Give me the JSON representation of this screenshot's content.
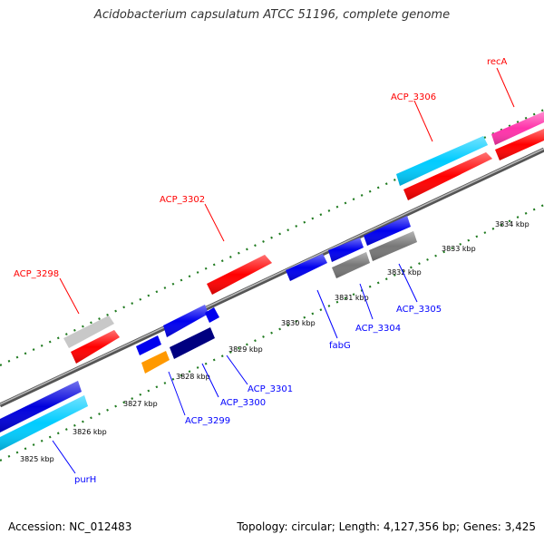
{
  "title": "Acidobacterium capsulatum ATCC 51196, complete genome",
  "footer": {
    "accession": "Accession: NC_012483",
    "summary": "Topology: circular; Length: 4,127,356 bp; Genes: 3,425"
  },
  "ticks": [
    "3825 kbp",
    "3826 kbp",
    "3827 kbp",
    "3828 kbp",
    "3829 kbp",
    "3830 kbp",
    "3831 kbp",
    "3832 kbp",
    "3833 kbp",
    "3834 kbp"
  ],
  "labels": {
    "recA": "recA",
    "ACP_3306": "ACP_3306",
    "ACP_3302": "ACP_3302",
    "ACP_3298": "ACP_3298",
    "purH": "purH",
    "ACP_3299": "ACP_3299",
    "ACP_3300": "ACP_3300",
    "ACP_3301": "ACP_3301",
    "fabG": "fabG",
    "ACP_3304": "ACP_3304",
    "ACP_3305": "ACP_3305"
  },
  "colors": {
    "red": "#ff0000",
    "blue": "#0000ff",
    "cyan": "#00ccff",
    "magenta": "#ff33aa",
    "gray": "#7a7a7a",
    "lightgray": "#c8c8c8",
    "orange": "#ff9900",
    "navy": "#000080",
    "tick": "#006400",
    "backbone": "#777777"
  }
}
